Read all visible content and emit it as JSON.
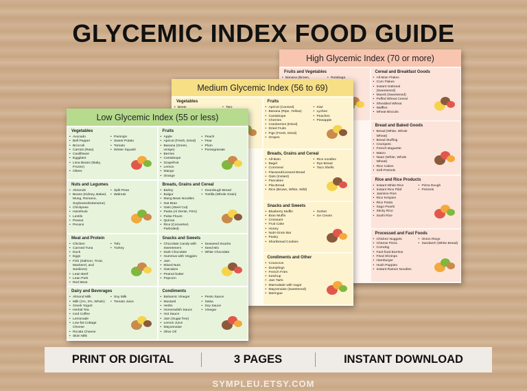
{
  "header": {
    "title": "GLYCEMIC INDEX FOOD GUIDE"
  },
  "pages": [
    {
      "title": "Low Glycemic Index (55 or less)",
      "columns": [
        [
          {
            "title": "Vegetables",
            "items": [
              [
                "Avocado",
                "Bell Pepper",
                "Broccoli",
                "Carrots (Raw)",
                "Cauliflower",
                "Eggplant",
                "Lima Beans (Baby, Frozen)",
                "Olives"
              ],
              [
                "Parsnips",
                "Sweet Potato",
                "Tomato",
                "Winter Squash"
              ]
            ]
          },
          {
            "title": "Nuts and Legumes",
            "items": [
              [
                "Almonds",
                "Beans (Kidney, Baked, Mung, Romano, Soybeans/Edamame)",
                "Chickpeas",
                "Hazelnuts",
                "Lentils",
                "Peanut",
                "Pecans"
              ],
              [
                "Split Peas",
                "Walnuts"
              ]
            ]
          },
          {
            "title": "Meat and Protein",
            "items": [
              [
                "Chicken",
                "Canned Tuna",
                "Duck",
                "Eggs",
                "Fish (Salmon, Trout, Mackerel, and Sardines)",
                "Lean Beef",
                "Lean Pork",
                "Red Meat"
              ],
              [
                "Tofu",
                "Turkey"
              ]
            ]
          },
          {
            "title": "Dairy and Beverages",
            "items": [
              [
                "Almond Milk",
                "Milk (1%, 2%, Whole)",
                "Greek Yogurt",
                "Herbal Tea",
                "Iced Coffee",
                "Lemonade",
                "Low-fat Cottage Cheese",
                "Ricotta Cheese",
                "Skim Milk"
              ],
              [
                "Soy Milk",
                "Tomato Juice"
              ]
            ]
          }
        ],
        [
          {
            "title": "Fruits",
            "items": [
              [
                "Apple",
                "Apricot (Fresh, Dried)",
                "Banana (Green, Unripe)",
                "Berries",
                "Cantaloupe",
                "Grapefruit",
                "Lemon",
                "Mango",
                "Orange"
              ],
              [
                "Peach",
                "Pear",
                "Plum",
                "Pomegranate"
              ]
            ]
          },
          {
            "title": "Breads, Grains and Cereal",
            "items": [
              [
                "Barley",
                "Bulgur",
                "Mung Bean Noodles",
                "Oat Bran",
                "Oats (Steel Cut)",
                "Pasta (Al Dente, Firm)",
                "Pulse Flours",
                "Quinoa",
                "Rice (Converted, Parboiled)"
              ],
              [
                "Sourdough Bread",
                "Tortilla (Whole Grain)"
              ]
            ]
          },
          {
            "title": "Snacks and Sweets",
            "items": [
              [
                "Chocolate Candy with Sweeteners",
                "Dark Chocolate",
                "Hummus with Veggies",
                "Jam",
                "Mixed Nuts",
                "Oatcakes",
                "Peanut butter",
                "Popcorn"
              ],
              [
                "Seaweed Snacks",
                "Seed Mix",
                "White Chocolate"
              ]
            ]
          },
          {
            "title": "Condiments",
            "items": [
              [
                "Balsamic Vinegar",
                "Mustard",
                "Herbs",
                "Horseradish Sauce",
                "Hot Sauce",
                "Jam (Sugar free)",
                "Lemon Juice",
                "Mayonnaise",
                "Olive Oil"
              ],
              [
                "Pesto Sauce",
                "Salsa",
                "Soy Sauce",
                "Vinegar"
              ]
            ]
          }
        ]
      ]
    },
    {
      "title": "Medium Glycemic Index (56 to 69)",
      "columns": [
        [
          {
            "title": "Vegetables",
            "items": [
              [
                "Beets"
              ],
              [
                "Taro"
              ]
            ]
          }
        ],
        [
          {
            "title": "Fruits",
            "items": [
              [
                "Apricot (Canned)",
                "Banana (Ripe, Yellow)",
                "Cantaloupe",
                "Cherries",
                "Cranberries (Dried)",
                "Dried Fruits",
                "Figs (Fresh, Dried)",
                "Grapes"
              ],
              [
                "Kiwi",
                "Lychee",
                "Peaches",
                "Pineapple"
              ]
            ]
          },
          {
            "title": "Breads, Grains and Cereal",
            "items": [
              [
                "All-Bran",
                "Bagel",
                "Cornmeal",
                "Flaxseed/Linseed Bread",
                "Oats (Instant)",
                "Pancakes",
                "Pita Bread",
                "Rice (Brown, White, Wild)"
              ],
              [
                "Rice noodles",
                "Rye Bread",
                "Taco Shells"
              ]
            ]
          },
          {
            "title": "Snacks and Sweets",
            "items": [
              [
                "Blueberry Muffin",
                "Bran Muffin",
                "Croissant",
                "Fruit Cake",
                "Honey",
                "Nutri-Grain Bar",
                "Pastry",
                "Shortbread Cookies"
              ],
              [
                "Sorbet",
                "Ice Cream"
              ]
            ]
          },
          {
            "title": "Condiments and Other",
            "items": [
              [
                "Couscous",
                "Dumplings",
                "French Fries",
                "Ketchup",
                "Jam Tarts",
                "Marmalade with sugar",
                "Mayonnaise (sweetened)",
                "Meringue"
              ],
              []
            ]
          }
        ]
      ]
    },
    {
      "title": "High Glycemic Index (70 or more)",
      "columns": [
        [
          {
            "title": "Fruits and Vegetables",
            "items": [
              [
                "Banana (Brown,"
              ],
              [
                "Rutabaga"
              ]
            ]
          }
        ],
        [
          {
            "title": "Cereal and Breakfast Goods",
            "items": [
              [
                "All-Bran Flakes",
                "Corn Flakes",
                "Instant Oatmeal (Sweetened)",
                "Muesli (Sweetened)",
                "Puffed Wheat Cereal",
                "Shredded Wheat",
                "Waffles",
                "Wheat Biscuits"
              ],
              []
            ]
          },
          {
            "title": "Bread and Baked Goods",
            "items": [
              [
                "Bread (White, Whole Wheat)",
                "Bread Stuffing",
                "Crumpets",
                "French Baguette",
                "Matzo",
                "Naan (White, Whole Wheat)",
                "Rice Cakes",
                "Soft Pretzels"
              ],
              []
            ]
          },
          {
            "title": "Rice and Rice Products",
            "items": [
              [
                "Instant White Rice",
                "Instant Rice Pilaf",
                "Jasmine Rice",
                "Rice Krispies",
                "Rice Pasta",
                "Sago Pearls",
                "Sticky Rice",
                "Sushi Rice"
              ],
              [
                "Pizza Dough",
                "Pretzels"
              ]
            ]
          },
          {
            "title": "Processed and Fast Foods",
            "items": [
              [
                "Chicken Nuggets",
                "Cheese Pizza",
                "Corndog",
                "Fast-food Burritos",
                "Fried Shrimps",
                "Hamburger",
                "Hush Puppies",
                "Instant Ramen Noodles"
              ],
              [
                "Onion Rings",
                "Sandwich (White Bread)"
              ]
            ]
          }
        ]
      ]
    }
  ],
  "features": [
    "PRINT OR DIGITAL",
    "3 PAGES",
    "INSTANT DOWNLOAD"
  ],
  "footer": {
    "url": "SYMPLEU.ETSY.COM"
  }
}
